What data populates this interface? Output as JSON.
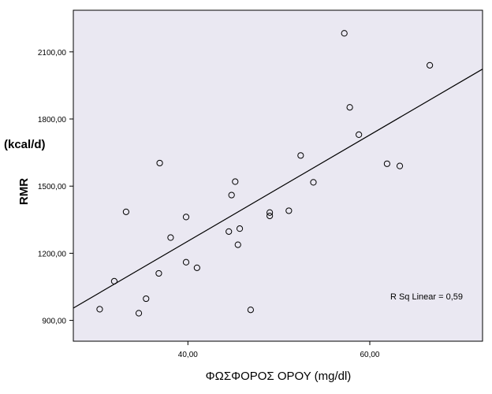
{
  "chart_data": {
    "type": "scatter",
    "xlabel": "ΦΩΣΦΟΡΟΣ ΟΡΟΥ (mg/dl)",
    "ylabel": "RMR",
    "yunit": "(kcal/d)",
    "xlim": [
      27.4,
      72.4
    ],
    "ylim": [
      807,
      2286
    ],
    "x_ticks": [
      40,
      60
    ],
    "x_tick_labels": [
      "40,00",
      "60,00"
    ],
    "y_ticks": [
      900,
      1200,
      1500,
      1800,
      2100
    ],
    "y_tick_labels": [
      "900,00",
      "1200,00",
      "1500,00",
      "1800,00",
      "2100,00"
    ],
    "grid": false,
    "plot_background": "#eae8f2",
    "annotation": "R Sq Linear = 0,59",
    "fit_line": {
      "x": [
        27.4,
        72.4
      ],
      "y": [
        955,
        2023
      ]
    },
    "points": [
      {
        "x": 30.3,
        "y": 950
      },
      {
        "x": 31.9,
        "y": 1075
      },
      {
        "x": 33.2,
        "y": 1385
      },
      {
        "x": 34.6,
        "y": 932
      },
      {
        "x": 35.4,
        "y": 997
      },
      {
        "x": 36.8,
        "y": 1110
      },
      {
        "x": 36.9,
        "y": 1603
      },
      {
        "x": 38.1,
        "y": 1270
      },
      {
        "x": 39.8,
        "y": 1362
      },
      {
        "x": 39.8,
        "y": 1160
      },
      {
        "x": 41.0,
        "y": 1135
      },
      {
        "x": 44.5,
        "y": 1297
      },
      {
        "x": 44.8,
        "y": 1460
      },
      {
        "x": 45.2,
        "y": 1520
      },
      {
        "x": 45.5,
        "y": 1238
      },
      {
        "x": 45.7,
        "y": 1310
      },
      {
        "x": 46.9,
        "y": 947
      },
      {
        "x": 49.0,
        "y": 1382
      },
      {
        "x": 49.0,
        "y": 1367
      },
      {
        "x": 51.1,
        "y": 1390
      },
      {
        "x": 52.4,
        "y": 1637
      },
      {
        "x": 53.8,
        "y": 1517
      },
      {
        "x": 57.2,
        "y": 2183
      },
      {
        "x": 57.8,
        "y": 1852
      },
      {
        "x": 58.8,
        "y": 1730
      },
      {
        "x": 61.9,
        "y": 1600
      },
      {
        "x": 63.3,
        "y": 1590
      },
      {
        "x": 66.6,
        "y": 2040
      }
    ]
  }
}
